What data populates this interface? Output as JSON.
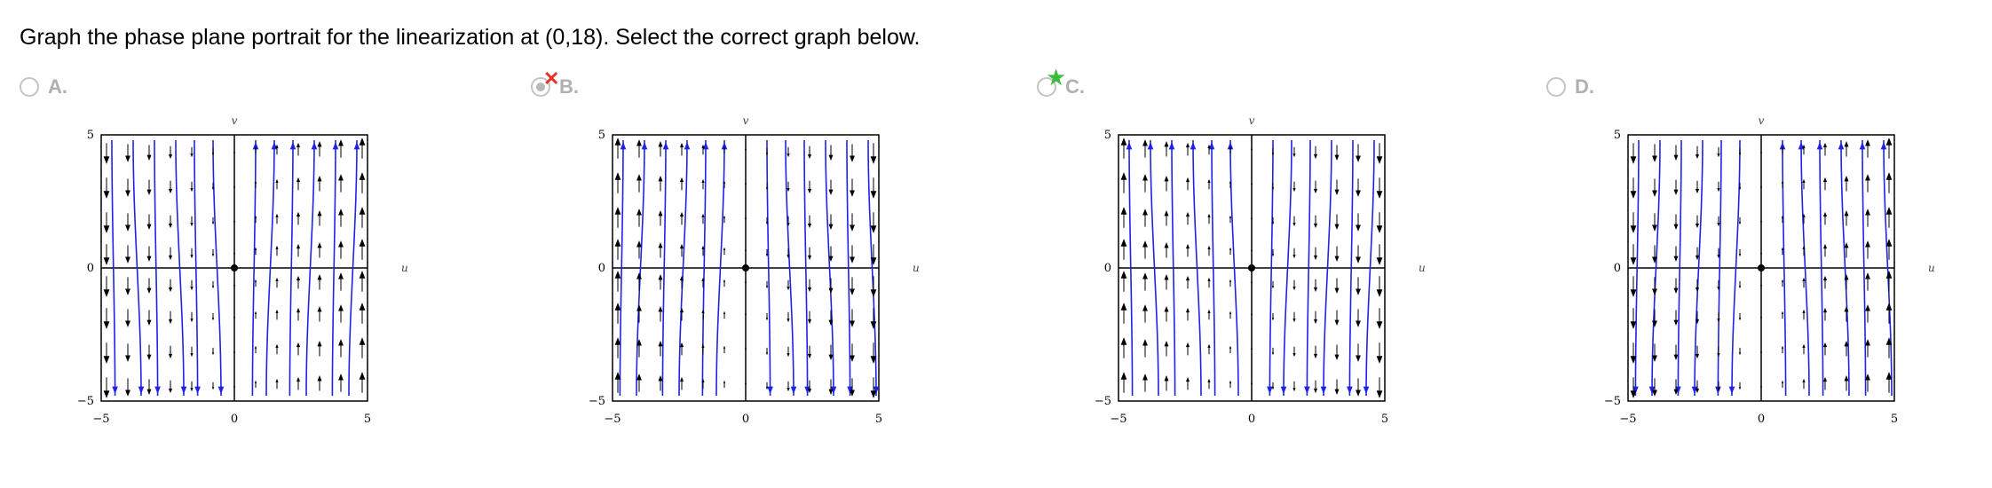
{
  "question": {
    "text": "Graph the phase plane portrait for the linearization at (0,18). Select the correct graph below."
  },
  "options": [
    {
      "label": "A.",
      "selected": false,
      "marker": "none",
      "pattern": "A"
    },
    {
      "label": "B.",
      "selected": true,
      "marker": "incorrect-x",
      "pattern": "B"
    },
    {
      "label": "C.",
      "selected": false,
      "marker": "correct-star",
      "pattern": "C"
    },
    {
      "label": "D.",
      "selected": false,
      "marker": "none",
      "pattern": "D"
    }
  ],
  "graph": {
    "x_axis_label": "u",
    "y_axis_label": "v",
    "x_ticks": [
      "−5",
      "0",
      "5"
    ],
    "y_ticks": [
      "5",
      "0",
      "−5"
    ],
    "xlim": [
      -5,
      5
    ],
    "ylim": [
      -5,
      5
    ],
    "stream_color": "#1f22e8",
    "arrow_color": "#000000"
  },
  "colors": {
    "incorrect": "#e8312a",
    "correct": "#3dbb3d"
  }
}
